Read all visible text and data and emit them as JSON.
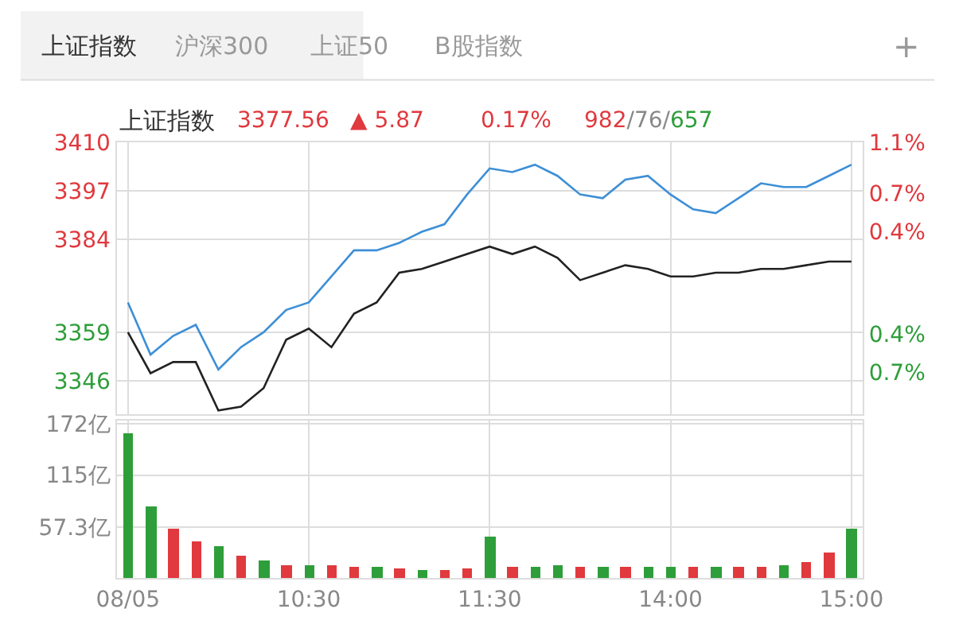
{
  "chart_data": [
    {
      "type": "line",
      "title": "上证指数",
      "annotations": [
        "上证指数",
        "沪深300",
        "上证50",
        "B股指数",
        "+",
        "3377.56",
        "▲ 5.87",
        "0.17%",
        "982/76/657"
      ],
      "categories": [
        null,
        null,
        null,
        null,
        null,
        null,
        null,
        null,
        null,
        null,
        null,
        null,
        null,
        null,
        null,
        null,
        null,
        null,
        null,
        null,
        null,
        null,
        null,
        null,
        null,
        null,
        null,
        null,
        null,
        null,
        null,
        null,
        null
      ],
      "series": [
        {
          "color": "#3d8fd6",
          "values": [
            3367,
            3353,
            3358,
            3361,
            3349,
            3355,
            3359,
            3365,
            3367,
            3374,
            3381,
            3381,
            3383,
            3386,
            3388,
            3396,
            3403,
            3402,
            3404,
            3401,
            3396,
            3395,
            3400,
            3401,
            3396,
            3392,
            3391,
            3395,
            3399,
            3398,
            3398,
            3401,
            3404
          ]
        },
        {
          "color": "#222222",
          "values": [
            3359,
            3348,
            3351,
            3351,
            3338,
            3339,
            3344,
            3357,
            3360,
            3355,
            3364,
            3367,
            3375,
            3376,
            3378,
            3380,
            3382,
            3380,
            3382,
            3379,
            3373,
            3375,
            3377,
            3376,
            3374,
            3374,
            3375,
            3375,
            3376,
            3376,
            3377,
            3378,
            3378
          ]
        }
      ],
      "ylim": [
        3337,
        3410
      ],
      "yticks": [
        3346,
        3359,
        3384,
        3397,
        3410
      ],
      "y2lim": [
        -1.03,
        1.1
      ],
      "y2ticks": [
        {
          "value": -0.7,
          "label": "0.7%"
        },
        {
          "value": -0.4,
          "label": "0.4%"
        },
        {
          "value": 0.4,
          "label": "0.4%"
        },
        {
          "value": 0.7,
          "label": "0.7%"
        },
        {
          "value": 1.1,
          "label": "1.1%"
        }
      ],
      "tick_labels": "y",
      "grid": true
    },
    {
      "type": "bar",
      "categories": [
        "08/05",
        null,
        null,
        null,
        null,
        null,
        null,
        null,
        "10:30",
        null,
        null,
        null,
        null,
        null,
        null,
        null,
        "11:30",
        null,
        null,
        null,
        null,
        null,
        null,
        null,
        "14:00",
        null,
        null,
        null,
        null,
        null,
        null,
        null,
        "15:00"
      ],
      "values": [
        162,
        80,
        55,
        42,
        36,
        26,
        20,
        15,
        14,
        15,
        13,
        12,
        11,
        10,
        10,
        11,
        47,
        12,
        13,
        14,
        13,
        12,
        12,
        12,
        12,
        13,
        12,
        13,
        13,
        14,
        18,
        28,
        56
      ],
      "colors": [
        "#2e9e3a",
        "#2e9e3a",
        "#e0393e",
        "#e0393e",
        "#2e9e3a",
        "#e0393e",
        "#2e9e3a",
        "#e0393e",
        "#2e9e3a",
        "#e0393e",
        "#e0393e",
        "#2e9e3a",
        "#e0393e",
        "#2e9e3a",
        "#e0393e",
        "#e0393e",
        "#2e9e3a",
        "#e0393e",
        "#2e9e3a",
        "#2e9e3a",
        "#e0393e",
        "#2e9e3a",
        "#e0393e",
        "#2e9e3a",
        "#2e9e3a",
        "#e0393e",
        "#2e9e3a",
        "#e0393e",
        "#e0393e",
        "#2e9e3a",
        "#e0393e",
        "#e0393e",
        "#2e9e3a"
      ],
      "ylim": [
        0,
        176
      ],
      "yticks": [
        {
          "value": 57.3,
          "label": "57.3亿"
        },
        {
          "value": 115,
          "label": "115亿"
        },
        {
          "value": 172,
          "label": "172亿"
        }
      ],
      "grid": true
    }
  ]
}
